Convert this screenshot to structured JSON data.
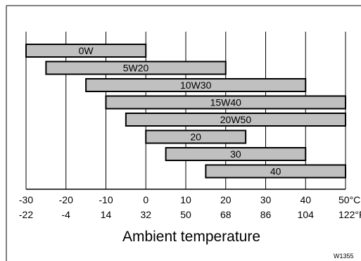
{
  "chart_data": {
    "type": "bar",
    "orientation": "horizontal-range",
    "categories": [
      "0W",
      "5W20",
      "10W30",
      "15W40",
      "20W50",
      "20",
      "30",
      "40"
    ],
    "ranges": [
      {
        "label": "0W",
        "from": -30,
        "to": 0
      },
      {
        "label": "5W20",
        "from": -25,
        "to": 20
      },
      {
        "label": "10W30",
        "from": -15,
        "to": 40
      },
      {
        "label": "15W40",
        "from": -10,
        "to": 50
      },
      {
        "label": "20W50",
        "from": -5,
        "to": 50
      },
      {
        "label": "20",
        "from": 0,
        "to": 25
      },
      {
        "label": "30",
        "from": 5,
        "to": 40
      },
      {
        "label": "40",
        "from": 15,
        "to": 50
      }
    ],
    "x_ticks_celsius": [
      "-30",
      "-20",
      "-10",
      "0",
      "10",
      "20",
      "30",
      "40",
      "50°C"
    ],
    "x_ticks_fahrenheit": [
      "-22",
      "-4",
      "14",
      "32",
      "50",
      "68",
      "86",
      "104",
      "122°F"
    ],
    "xlim": [
      -30,
      50
    ],
    "xlabel": "Ambient temperature",
    "grid": "vertical",
    "legend": "none",
    "colors": {
      "bar_fill": "#c0c0c0",
      "bar_stroke": "#000000",
      "grid": "#000000"
    }
  },
  "figure_id": "W1355"
}
